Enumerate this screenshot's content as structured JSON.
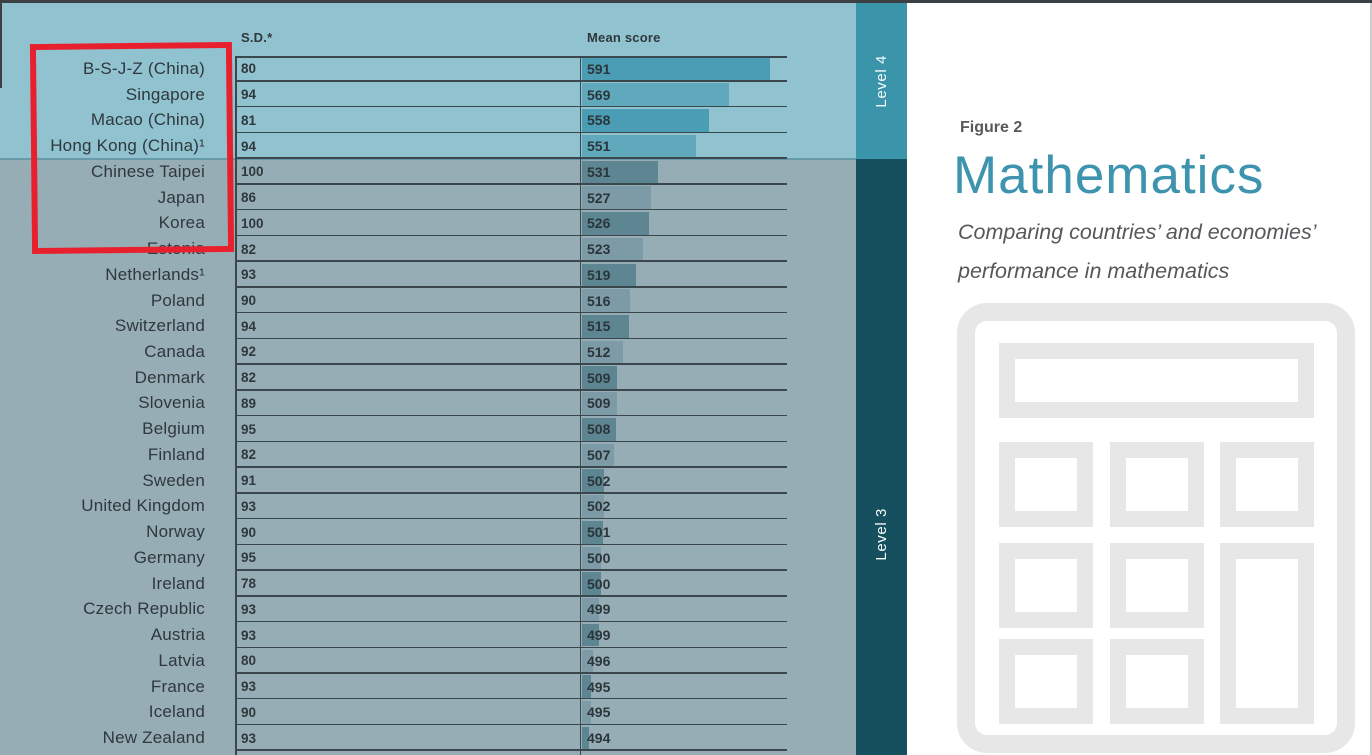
{
  "page": {
    "figure_label": "Figure 2",
    "title": "Mathematics",
    "subtitle_line1": "Comparing countries’ and economies’",
    "subtitle_line2": "performance in mathematics"
  },
  "table": {
    "sd_header": "S.D.*",
    "mean_header": "Mean score"
  },
  "levels": {
    "level4_label": "Level 4",
    "level3_label": "Level 3"
  },
  "annotation": {
    "shape": "red-rectangle",
    "highlighted_rows": [
      "B-S-J-Z (China)",
      "Singapore",
      "Macao (China)",
      "Hong Kong (China)¹",
      "Chinese Taipei",
      "Japan",
      "Korea"
    ]
  },
  "colors": {
    "level4_bg": "#91c2cf",
    "level3_bg": "#97adb5",
    "level4_strip": "#3a94aa",
    "level3_strip": "#16505f",
    "bar_teal_dark": "#4a9db4",
    "bar_teal_light": "#60a9bc",
    "bar_gray_dark": "#5d8692",
    "bar_gray_light": "#7d9ba6",
    "grid_line": "#3a484e",
    "title_teal": "#3e93ae",
    "annotation_red": "#e8202e",
    "calculator_gray": "#e7e7e7"
  },
  "chart_data": {
    "type": "bar",
    "orientation": "horizontal",
    "figure_label": "Figure 2",
    "title": "Mathematics",
    "subtitle": "Comparing countries’ and economies’ performance in mathematics",
    "columns": [
      "S.D.*",
      "Mean score"
    ],
    "categories": [
      "B-S-J-Z (China)",
      "Singapore",
      "Macao (China)",
      "Hong Kong (China)¹",
      "Chinese Taipei",
      "Japan",
      "Korea",
      "Estonia",
      "Netherlands¹",
      "Poland",
      "Switzerland",
      "Canada",
      "Denmark",
      "Slovenia",
      "Belgium",
      "Finland",
      "Sweden",
      "United Kingdom",
      "Norway",
      "Germany",
      "Ireland",
      "Czech Republic",
      "Austria",
      "Latvia",
      "France",
      "Iceland",
      "New Zealand"
    ],
    "sd_values": [
      80,
      94,
      81,
      94,
      100,
      86,
      100,
      82,
      93,
      90,
      94,
      92,
      82,
      89,
      95,
      82,
      91,
      93,
      90,
      95,
      78,
      93,
      93,
      80,
      93,
      90,
      93
    ],
    "mean_scores": [
      591,
      569,
      558,
      551,
      531,
      527,
      526,
      523,
      519,
      516,
      515,
      512,
      509,
      509,
      508,
      507,
      502,
      502,
      501,
      500,
      500,
      499,
      499,
      496,
      495,
      495,
      494
    ],
    "bar_axis_min": 490,
    "grid": true,
    "legend_position": "none",
    "level_bands": [
      {
        "label": "Level 4",
        "first_row": 0,
        "last_row": 3
      },
      {
        "label": "Level 3",
        "first_row": 4,
        "last_row": 26
      }
    ]
  }
}
